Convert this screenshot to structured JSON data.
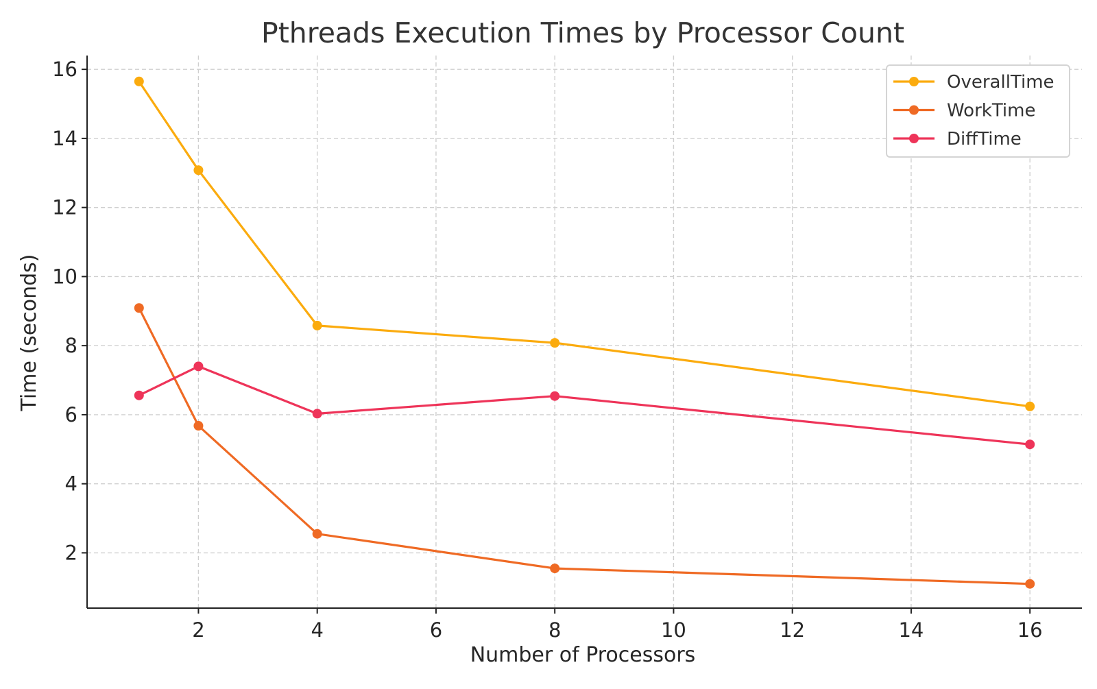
{
  "chart_data": {
    "type": "line",
    "title": "Pthreads Execution Times by Processor Count",
    "xlabel": "Number of Processors",
    "ylabel": "Time (seconds)",
    "x": [
      1,
      2,
      4,
      8,
      16
    ],
    "xlim": [
      0.125,
      16.875
    ],
    "ylim": [
      0.4,
      16.4
    ],
    "xticks": [
      2,
      4,
      6,
      8,
      10,
      12,
      14,
      16
    ],
    "yticks": [
      2,
      4,
      6,
      8,
      10,
      12,
      14,
      16
    ],
    "grid": true,
    "legend_position": "top-right",
    "series": [
      {
        "name": "OverallTime",
        "color": "#FBAB0E",
        "values": [
          15.65,
          13.08,
          8.58,
          8.08,
          6.24
        ]
      },
      {
        "name": "WorkTime",
        "color": "#EF6A24",
        "values": [
          9.09,
          5.68,
          2.55,
          1.55,
          1.1
        ]
      },
      {
        "name": "DiffTime",
        "color": "#EE3459",
        "values": [
          6.56,
          7.4,
          6.03,
          6.54,
          5.14
        ]
      }
    ]
  }
}
